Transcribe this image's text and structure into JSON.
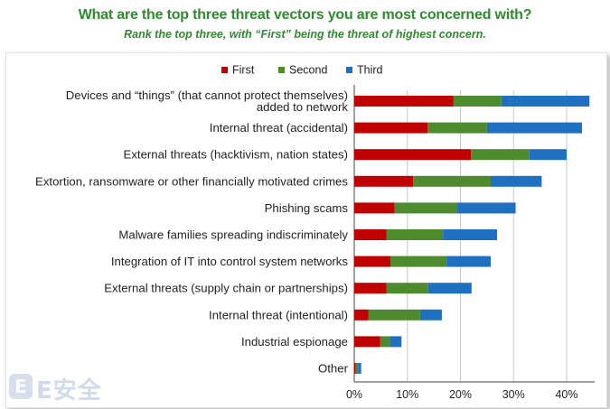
{
  "chart_data": {
    "type": "bar",
    "orientation": "horizontal",
    "stacked": true,
    "title": "What are the top three threat vectors you are most concerned with?",
    "subtitle": "Rank the top three, with “First” being the threat of highest concern.",
    "categories": [
      [
        "Devices and “things” (that cannot protect themselves)",
        "added to network"
      ],
      [
        "Internal threat (accidental)"
      ],
      [
        "External threats (hacktivism, nation states)"
      ],
      [
        "Extortion, ransomware or other financially motivated crimes"
      ],
      [
        "Phishing scams"
      ],
      [
        "Malware families spreading indiscriminately"
      ],
      [
        "Integration of IT into control system networks"
      ],
      [
        "External threats (supply chain or partnerships)"
      ],
      [
        "Internal threat (intentional)"
      ],
      [
        "Industrial espionage"
      ],
      [
        "Other"
      ]
    ],
    "series": [
      {
        "name": "First",
        "color": "#c00000",
        "values": [
          18.7,
          13.8,
          22.0,
          11.1,
          7.6,
          6.1,
          6.8,
          6.1,
          2.7,
          4.9,
          0.3
        ]
      },
      {
        "name": "Second",
        "color": "#4e8a2e",
        "values": [
          9.0,
          11.2,
          11.0,
          14.6,
          11.8,
          10.6,
          10.6,
          7.8,
          9.7,
          1.9,
          0.4
        ]
      },
      {
        "name": "Third",
        "color": "#1f70c1",
        "values": [
          16.6,
          17.9,
          7.0,
          9.6,
          11.0,
          10.2,
          8.3,
          8.2,
          4.1,
          2.1,
          0.6
        ]
      }
    ],
    "xlim": [
      0,
      45
    ],
    "xticks": [
      0,
      10,
      20,
      30,
      40
    ],
    "xtick_labels": [
      "0%",
      "10%",
      "20%",
      "30%",
      "40%"
    ],
    "grid": "vertical",
    "legend": "top-center"
  },
  "watermark": {
    "badge": "E",
    "text": "E安全"
  }
}
